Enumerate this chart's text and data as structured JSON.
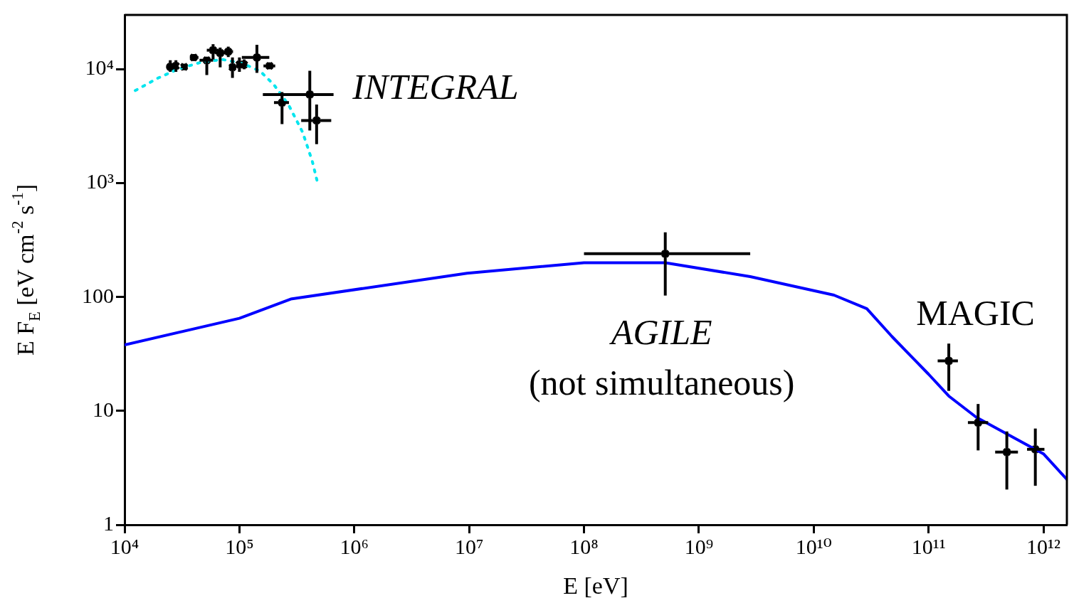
{
  "chart_data": {
    "type": "scatter",
    "xlabel": "E [eV]",
    "ylabel": "E F$_{E}$ [eV cm$^{-2}$ s$^{-1}$]",
    "log": "xy",
    "grid": false,
    "legend": false,
    "xlim": [
      10000,
      1600000000000
    ],
    "ylim": [
      1,
      30000
    ],
    "xticks": [
      {
        "value": 10000,
        "label": "10⁴"
      },
      {
        "value": 100000,
        "label": "10⁵"
      },
      {
        "value": 1000000,
        "label": "10⁶"
      },
      {
        "value": 10000000,
        "label": "10⁷"
      },
      {
        "value": 100000000,
        "label": "10⁸"
      },
      {
        "value": 1000000000,
        "label": "10⁹"
      },
      {
        "value": 10000000000,
        "label": "10¹⁰"
      },
      {
        "value": 100000000000,
        "label": "10¹¹"
      },
      {
        "value": 1000000000000,
        "label": "10¹²"
      }
    ],
    "yticks": [
      1,
      10,
      100,
      {
        "value": 1000,
        "label": "10³"
      },
      {
        "value": 10000,
        "label": "10⁴"
      }
    ],
    "series": [
      {
        "type": "line",
        "color": "#00e5ee",
        "line_style": "dotted",
        "marker": "none",
        "x": [
          12400,
          19700,
          29000,
          46000,
          71000,
          108000,
          152000,
          200000,
          267000,
          355000,
          430000,
          480000
        ],
        "values": [
          6500,
          8400,
          10000,
          11500,
          12200,
          11200,
          9600,
          7300,
          4900,
          2800,
          1570,
          1000
        ]
      },
      {
        "type": "line",
        "color": "#0000ff",
        "line_style": "solid",
        "marker": "none",
        "x": [
          10000,
          100000,
          280000,
          9600000,
          100000000,
          510000000,
          2800000000,
          15000000000,
          29000000000,
          48000000000,
          100000000000,
          150000000000,
          260000000000,
          1000000000000,
          1600000000000
        ],
        "values": [
          38,
          65,
          96,
          162,
          200,
          200,
          151,
          104,
          79,
          45,
          21,
          13.5,
          8.8,
          4.2,
          2.5
        ]
      },
      {
        "color": "#000000",
        "marker": "cross",
        "x": [
          25000,
          28000,
          33000,
          40000,
          52000,
          59000,
          68000,
          80000,
          87000,
          100000,
          110000,
          142000,
          183000,
          235000,
          410000,
          470000
        ],
        "values": [
          10500,
          10700,
          10500,
          12700,
          12000,
          14700,
          13900,
          14300,
          10400,
          11000,
          11000,
          12700,
          10700,
          5100,
          6000,
          3550
        ],
        "xerrors": [
          [
            23000,
            27500
          ],
          [
            26500,
            29500
          ],
          [
            31000,
            35500
          ],
          [
            37000,
            44000
          ],
          [
            45000,
            59000
          ],
          [
            52000,
            66000
          ],
          [
            62000,
            75000
          ],
          [
            73000,
            88000
          ],
          [
            81000,
            94000
          ],
          [
            94000,
            107000
          ],
          [
            104000,
            117000
          ],
          [
            105000,
            182000
          ],
          [
            162000,
            205000
          ],
          [
            200000,
            270000
          ],
          [
            160000,
            660000
          ],
          [
            345000,
            630000
          ]
        ],
        "errors": [
          [
            9500,
            12000
          ],
          [
            9500,
            12000
          ],
          [
            9800,
            11200
          ],
          [
            11800,
            13600
          ],
          [
            8900,
            12900
          ],
          [
            12200,
            16600
          ],
          [
            10400,
            15500
          ],
          [
            12800,
            15800
          ],
          [
            8400,
            12700
          ],
          [
            9500,
            12700
          ],
          [
            10000,
            12200
          ],
          [
            9300,
            16400
          ],
          [
            10000,
            11500
          ],
          [
            3300,
            6300
          ],
          [
            2900,
            9700
          ],
          [
            2200,
            4900
          ]
        ]
      },
      {
        "color": "#000000",
        "marker": "cross",
        "x": [
          510000000
        ],
        "values": [
          240
        ],
        "xerrors": [
          [
            100000000,
            2800000000
          ]
        ],
        "errors": [
          [
            103,
            370
          ]
        ]
      },
      {
        "color": "#000000",
        "marker": "cross",
        "x": [
          150000000000,
          270000000000,
          480000000000,
          850000000000
        ],
        "values": [
          27.5,
          7.9,
          4.35,
          4.6
        ],
        "xerrors": [
          [
            120000000000,
            180000000000
          ],
          [
            220000000000,
            330000000000
          ],
          [
            380000000000,
            600000000000
          ],
          [
            720000000000,
            1020000000000
          ]
        ],
        "errors": [
          [
            15,
            39
          ],
          [
            4.5,
            11.5
          ],
          [
            2.04,
            6.6
          ],
          [
            2.2,
            7.0
          ]
        ]
      }
    ],
    "annotations": [
      "INTEGRAL",
      "AGILE",
      "(not simultaneous)",
      "MAGIC"
    ]
  }
}
